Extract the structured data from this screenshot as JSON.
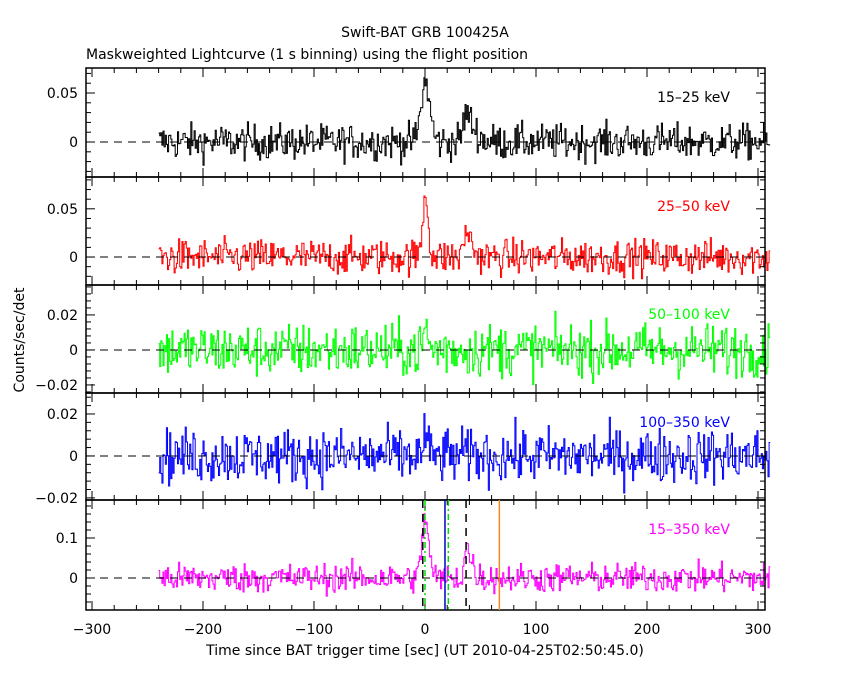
{
  "chart_data": {
    "type": "line",
    "title": "Swift-BAT GRB 100425A",
    "subtitle": "Maskweighted Lightcurve (1 s binning) using the flight position",
    "xlabel": "Time since BAT trigger time [sec] (UT 2010-04-25T02:50:45.0)",
    "ylabel": "Counts/sec/det",
    "xlim": [
      -310,
      310
    ],
    "xticks": [
      -300,
      -200,
      -100,
      0,
      100,
      200,
      300
    ],
    "data_range": [
      -240,
      310
    ],
    "panels": [
      {
        "name": "15-25 keV",
        "label": "15–25 keV",
        "color": "#000000",
        "ylim": [
          -0.0357,
          0.0755
        ],
        "yticks": [
          0,
          0.05
        ],
        "ytick_labels": [
          "0",
          "0.05"
        ],
        "noise": 0.009,
        "peaks": [
          {
            "t": 0,
            "amp": 0.06,
            "w": 4
          },
          {
            "t": 37,
            "amp": 0.03,
            "w": 3,
            "tail": 15
          }
        ]
      },
      {
        "name": "25-50 keV",
        "label": "25–50 keV",
        "color": "#ff0000",
        "ylim": [
          -0.029,
          0.083
        ],
        "yticks": [
          0,
          0.05
        ],
        "ytick_labels": [
          "0",
          "0.05"
        ],
        "noise": 0.009,
        "peaks": [
          {
            "t": 0,
            "amp": 0.065,
            "w": 2.5
          },
          {
            "t": 37,
            "amp": 0.03,
            "w": 2,
            "tail": 10
          }
        ]
      },
      {
        "name": "50-100 keV",
        "label": "50–100 keV",
        "color": "#00ff00",
        "ylim": [
          -0.0246,
          0.0371
        ],
        "yticks": [
          -0.02,
          0,
          0.02
        ],
        "ytick_labels": [
          "−0.02",
          "0",
          "0.02"
        ],
        "noise": 0.0075,
        "peaks": [
          {
            "t": 0,
            "amp": 0.012,
            "w": 2
          }
        ]
      },
      {
        "name": "100-350 keV",
        "label": "100–350 keV",
        "color": "#0000ff",
        "ylim": [
          -0.021,
          0.03
        ],
        "yticks": [
          -0.02,
          0,
          0.02
        ],
        "ytick_labels": [
          "−0.02",
          "0",
          "0.02"
        ],
        "noise": 0.0065,
        "peaks": [
          {
            "t": 0,
            "amp": 0.012,
            "w": 1.5
          }
        ]
      },
      {
        "name": "15-350 keV",
        "label": "15–350 keV",
        "color": "#ff00ff",
        "ylim": [
          -0.08,
          0.195
        ],
        "yticks": [
          0,
          0.1
        ],
        "ytick_labels": [
          "0",
          "0.1"
        ],
        "noise": 0.018,
        "peaks": [
          {
            "t": 0,
            "amp": 0.15,
            "w": 3
          },
          {
            "t": 37,
            "amp": 0.08,
            "w": 2,
            "tail": 12
          }
        ]
      }
    ],
    "markers": [
      {
        "t": -2,
        "style": "dashed",
        "color": "#000000"
      },
      {
        "t": 37,
        "style": "dashed",
        "color": "#000000"
      },
      {
        "t": 18,
        "style": "solid",
        "color": "#0000cc"
      },
      {
        "t": 0,
        "style": "dashdot",
        "color": "#00dd00"
      },
      {
        "t": 21,
        "style": "dashdot",
        "color": "#00dd00"
      },
      {
        "t": 67,
        "style": "solid",
        "color": "#ee8822"
      }
    ]
  }
}
